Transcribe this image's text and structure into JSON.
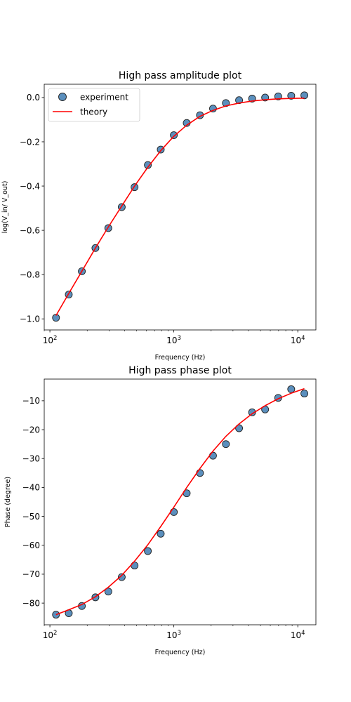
{
  "chart_data": [
    {
      "type": "scatter",
      "title": "High pass amplitude plot",
      "xlabel": "Frequency (Hz)",
      "ylabel": "log(V_in/ V_out)",
      "xscale": "log",
      "xlim": [
        90,
        14000
      ],
      "ylim": [
        -1.05,
        0.06
      ],
      "x_ticks": [
        {
          "value": 100,
          "base": "10",
          "exp": "2"
        },
        {
          "value": 1000,
          "base": "10",
          "exp": "3"
        },
        {
          "value": 10000,
          "base": "10",
          "exp": "4"
        }
      ],
      "y_ticks": [
        {
          "value": 0.0,
          "label": "0.0"
        },
        {
          "value": -0.2,
          "label": "−0.2"
        },
        {
          "value": -0.4,
          "label": "−0.4"
        },
        {
          "value": -0.6,
          "label": "−0.6"
        },
        {
          "value": -0.8,
          "label": "−0.8"
        },
        {
          "value": -1.0,
          "label": "−1.0"
        }
      ],
      "legend": {
        "position": "upper-left",
        "entries": [
          "experiment",
          "theory"
        ]
      },
      "series": [
        {
          "name": "experiment",
          "kind": "scatter",
          "color": "#5b8fbd",
          "x": [
            112,
            142,
            181,
            233,
            296,
            380,
            482,
            617,
            784,
            1000,
            1270,
            1625,
            2070,
            2630,
            3360,
            4280,
            5450,
            6950,
            8850,
            11300
          ],
          "y": [
            -0.995,
            -0.89,
            -0.785,
            -0.68,
            -0.59,
            -0.495,
            -0.405,
            -0.305,
            -0.235,
            -0.17,
            -0.115,
            -0.08,
            -0.05,
            -0.025,
            -0.012,
            -0.005,
            0.0,
            0.005,
            0.008,
            0.01
          ]
        },
        {
          "name": "theory",
          "kind": "line",
          "color": "#ff0000",
          "x": [
            112,
            142,
            181,
            233,
            296,
            380,
            482,
            617,
            784,
            1000,
            1270,
            1625,
            2070,
            2630,
            3360,
            4280,
            5450,
            6950,
            8850,
            11300
          ],
          "y": [
            -0.985,
            -0.885,
            -0.785,
            -0.68,
            -0.585,
            -0.49,
            -0.4,
            -0.315,
            -0.24,
            -0.175,
            -0.125,
            -0.085,
            -0.058,
            -0.038,
            -0.025,
            -0.016,
            -0.01,
            -0.006,
            -0.004,
            -0.003
          ]
        }
      ]
    },
    {
      "type": "scatter",
      "title": "High pass phase plot",
      "xlabel": "Frequency (Hz)",
      "ylabel": "Phase (degree)",
      "xscale": "log",
      "xlim": [
        90,
        14000
      ],
      "ylim": [
        -87.5,
        -2.5
      ],
      "x_ticks": [
        {
          "value": 100,
          "base": "10",
          "exp": "2"
        },
        {
          "value": 1000,
          "base": "10",
          "exp": "3"
        },
        {
          "value": 10000,
          "base": "10",
          "exp": "4"
        }
      ],
      "y_ticks": [
        {
          "value": -10,
          "label": "−10"
        },
        {
          "value": -20,
          "label": "−20"
        },
        {
          "value": -30,
          "label": "−30"
        },
        {
          "value": -40,
          "label": "−40"
        },
        {
          "value": -50,
          "label": "−50"
        },
        {
          "value": -60,
          "label": "−60"
        },
        {
          "value": -70,
          "label": "−70"
        },
        {
          "value": -80,
          "label": "−80"
        }
      ],
      "series": [
        {
          "name": "experiment",
          "kind": "scatter",
          "color": "#5b8fbd",
          "x": [
            112,
            142,
            181,
            233,
            296,
            380,
            482,
            617,
            784,
            1000,
            1270,
            1625,
            2070,
            2630,
            3360,
            4280,
            5450,
            6950,
            8850,
            11300
          ],
          "y": [
            -84,
            -83.5,
            -81,
            -78,
            -76,
            -71,
            -67,
            -62,
            -56,
            -48.5,
            -42,
            -35,
            -29,
            -25,
            -19.5,
            -14,
            -13,
            -9,
            -6,
            -7.5
          ]
        },
        {
          "name": "theory",
          "kind": "line",
          "color": "#ff0000",
          "x": [
            112,
            142,
            181,
            233,
            296,
            380,
            482,
            617,
            784,
            1000,
            1270,
            1625,
            2070,
            2630,
            3360,
            4280,
            5450,
            6950,
            8850,
            11300
          ],
          "y": [
            -84,
            -82.3,
            -80.5,
            -77.8,
            -74.5,
            -70.4,
            -65.5,
            -59.8,
            -53.5,
            -46.8,
            -40,
            -33.4,
            -27.4,
            -22.3,
            -18,
            -14.5,
            -11.7,
            -9.3,
            -7.4,
            -5.8
          ]
        }
      ]
    }
  ]
}
